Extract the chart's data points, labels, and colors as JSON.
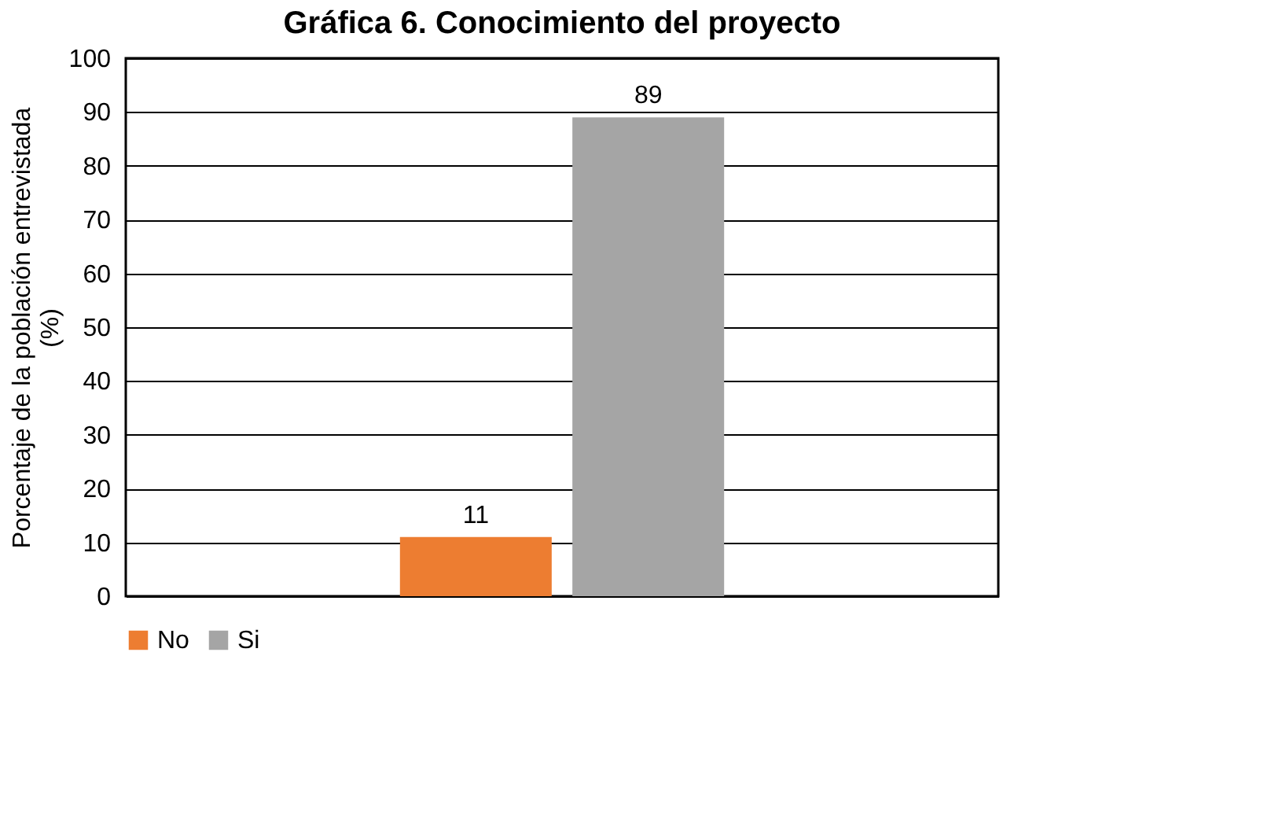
{
  "chart_data": {
    "type": "bar",
    "title": "Gráfica 6. Conocimiento del proyecto",
    "ylabel": "Porcentaje de la población entrevistada\n(%)",
    "categories": [
      null
    ],
    "series": [
      {
        "name": "No",
        "color": "#ed7d31",
        "values": [
          11
        ]
      },
      {
        "name": "Si",
        "color": "#a5a5a5",
        "values": [
          89
        ]
      }
    ],
    "ylim": [
      0,
      100
    ],
    "yticks": [
      0,
      10,
      20,
      30,
      40,
      50,
      60,
      70,
      80,
      90,
      100
    ],
    "grid": "y",
    "legend": "bottom",
    "data_labels": true
  }
}
